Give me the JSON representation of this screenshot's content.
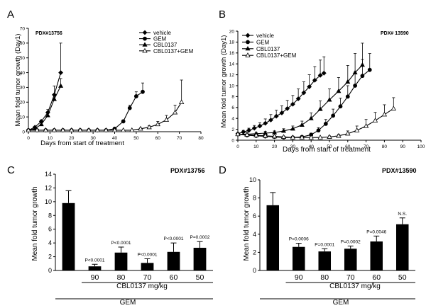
{
  "chart_data": [
    {
      "type": "line",
      "panel": "A",
      "annotation": "PDX#13756",
      "xlabel": "Days from start of treatment",
      "ylabel": "Mean fold tumor growth (Day1)",
      "xlim": [
        0,
        80
      ],
      "ylim": [
        0,
        70
      ],
      "xticks": [
        0,
        10,
        20,
        30,
        40,
        50,
        60,
        70,
        80
      ],
      "yticks": [
        0,
        10,
        20,
        30,
        40,
        50,
        60,
        70
      ],
      "legend_position": "top-right",
      "series": [
        {
          "name": "vehicle",
          "marker": "diamond-filled",
          "x": [
            0,
            3,
            6,
            9,
            12,
            15
          ],
          "y": [
            1,
            3,
            7,
            13,
            25,
            40
          ],
          "err": [
            0,
            0.5,
            1,
            2,
            6,
            20
          ]
        },
        {
          "name": "GEM",
          "marker": "circle-filled",
          "x": [
            0,
            4,
            8,
            12,
            16,
            20,
            24,
            28,
            32,
            36,
            40,
            44,
            47,
            50,
            53
          ],
          "y": [
            1,
            1,
            1,
            1,
            1,
            1,
            1,
            1,
            1,
            1,
            2,
            7,
            16,
            24,
            27
          ],
          "err": [
            0,
            0,
            0,
            0,
            0,
            0,
            0,
            0,
            0,
            0,
            0.3,
            1,
            2,
            3,
            6
          ]
        },
        {
          "name": "CBL0137",
          "marker": "triangle-filled",
          "x": [
            0,
            3,
            6,
            9,
            12,
            15
          ],
          "y": [
            1,
            2,
            5,
            11,
            22,
            31
          ],
          "err": [
            0,
            0.4,
            1,
            1.5,
            3,
            5
          ]
        },
        {
          "name": "CBL0137+GEM",
          "marker": "triangle-open",
          "x": [
            0,
            4,
            8,
            12,
            16,
            20,
            24,
            28,
            32,
            36,
            40,
            44,
            48,
            52,
            56,
            60,
            64,
            68,
            71
          ],
          "y": [
            1,
            1,
            1,
            1,
            1,
            1,
            1,
            1,
            1,
            1,
            1,
            1,
            1,
            2,
            3,
            5,
            8,
            13,
            20
          ],
          "err": [
            0,
            0,
            0,
            0,
            0,
            0,
            0,
            0,
            0,
            0,
            0,
            0,
            0,
            0.5,
            1,
            2,
            3,
            5,
            15
          ]
        }
      ]
    },
    {
      "type": "line",
      "panel": "B",
      "annotation": "PDX# 13590",
      "xlabel": "Days from start of treatment",
      "ylabel": "Mean fold tumor growth (Day1)",
      "xlim": [
        0,
        100
      ],
      "ylim": [
        0,
        20
      ],
      "xticks": [
        0,
        10,
        20,
        30,
        40,
        50,
        60,
        70,
        80,
        90,
        100
      ],
      "yticks": [
        0,
        2,
        4,
        6,
        8,
        10,
        12,
        14,
        16,
        18,
        20
      ],
      "legend_position": "top-left",
      "series": [
        {
          "name": "vehicle",
          "marker": "diamond-filled",
          "x": [
            0,
            3,
            6,
            9,
            12,
            15,
            18,
            21,
            24,
            27,
            30,
            33,
            36,
            39,
            42,
            45,
            47
          ],
          "y": [
            1.2,
            1.5,
            1.8,
            2.2,
            2.6,
            3.1,
            3.7,
            4.4,
            5.0,
            5.8,
            6.6,
            7.6,
            8.7,
            9.8,
            11.0,
            11.9,
            12.3
          ],
          "err": [
            0,
            0.3,
            0.4,
            0.5,
            0.6,
            0.8,
            1,
            1.1,
            1.3,
            1.5,
            1.6,
            1.8,
            2,
            2.2,
            2.5,
            2.8,
            3
          ]
        },
        {
          "name": "GEM",
          "marker": "circle-filled",
          "x": [
            0,
            5,
            10,
            15,
            20,
            25,
            30,
            35,
            40,
            44,
            48,
            52,
            56,
            60,
            64,
            68,
            72
          ],
          "y": [
            1.1,
            0.9,
            0.8,
            0.7,
            0.6,
            0.5,
            0.5,
            0.6,
            1.0,
            1.8,
            3.0,
            4.5,
            6.2,
            8.0,
            10.0,
            11.8,
            12.9
          ],
          "err": [
            0,
            0.1,
            0.1,
            0.1,
            0.1,
            0.1,
            0.1,
            0.2,
            0.3,
            0.5,
            0.8,
            1.2,
            1.5,
            2,
            2.5,
            3,
            3
          ]
        },
        {
          "name": "CBL0137",
          "marker": "triangle-filled",
          "x": [
            0,
            5,
            10,
            15,
            20,
            25,
            30,
            35,
            40,
            45,
            50,
            55,
            60,
            64,
            68
          ],
          "y": [
            1.1,
            1.1,
            1.2,
            1.3,
            1.4,
            1.7,
            2.1,
            2.8,
            4.0,
            5.7,
            7.4,
            9.0,
            10.7,
            12.4,
            13.8
          ],
          "err": [
            0,
            0.2,
            0.2,
            0.3,
            0.3,
            0.4,
            0.5,
            0.7,
            1,
            1.5,
            2,
            2.5,
            3,
            3.5,
            4
          ]
        },
        {
          "name": "CBL0137+GEM",
          "marker": "triangle-open",
          "x": [
            0,
            5,
            10,
            15,
            20,
            25,
            30,
            35,
            40,
            45,
            50,
            55,
            60,
            65,
            70,
            75,
            80,
            85
          ],
          "y": [
            1.1,
            1.0,
            0.9,
            0.8,
            0.7,
            0.6,
            0.5,
            0.5,
            0.5,
            0.5,
            0.6,
            0.8,
            1.2,
            1.8,
            2.6,
            3.6,
            4.7,
            5.8
          ],
          "err": [
            0,
            0.1,
            0.1,
            0.1,
            0.1,
            0.1,
            0.1,
            0.1,
            0.1,
            0.1,
            0.2,
            0.3,
            0.5,
            0.8,
            1.2,
            1.5,
            1.8,
            2
          ]
        }
      ]
    },
    {
      "type": "bar",
      "panel": "C",
      "annotation": "PDX#13756",
      "ylabel": "Mean fold tumor growth",
      "ylim": [
        0,
        14
      ],
      "yticks": [
        0,
        2,
        4,
        6,
        8,
        10,
        12,
        14
      ],
      "categories": [
        "",
        "90",
        "80",
        "70",
        "60",
        "50"
      ],
      "values": [
        9.8,
        0.6,
        2.6,
        1.1,
        2.7,
        3.3
      ],
      "errors": [
        1.8,
        0.3,
        0.8,
        0.6,
        1.3,
        0.9
      ],
      "pvalues": [
        "",
        "P<0.0001",
        "P<0.0001",
        "P<0.0001",
        "P<0.0001",
        "P=0.0002"
      ],
      "group_label_dose": "CBL0137 mg/kg",
      "group_label_drug": "GEM"
    },
    {
      "type": "bar",
      "panel": "D",
      "annotation": "PDX#13590",
      "ylabel": "Mean fold tumor growth",
      "ylim": [
        0,
        10
      ],
      "yticks": [
        0,
        2,
        4,
        6,
        8,
        10
      ],
      "categories": [
        "",
        "90",
        "80",
        "70",
        "60",
        "50"
      ],
      "values": [
        7.2,
        2.6,
        2.1,
        2.4,
        3.2,
        5.1
      ],
      "errors": [
        1.4,
        0.4,
        0.3,
        0.3,
        0.6,
        0.7
      ],
      "pvalues": [
        "",
        "P=0.0006",
        "P=0.0001",
        "P=0.0002",
        "P=0.0046",
        "N.S."
      ],
      "group_label_dose": "CBL0137 mg/kg",
      "group_label_drug": "GEM"
    }
  ]
}
